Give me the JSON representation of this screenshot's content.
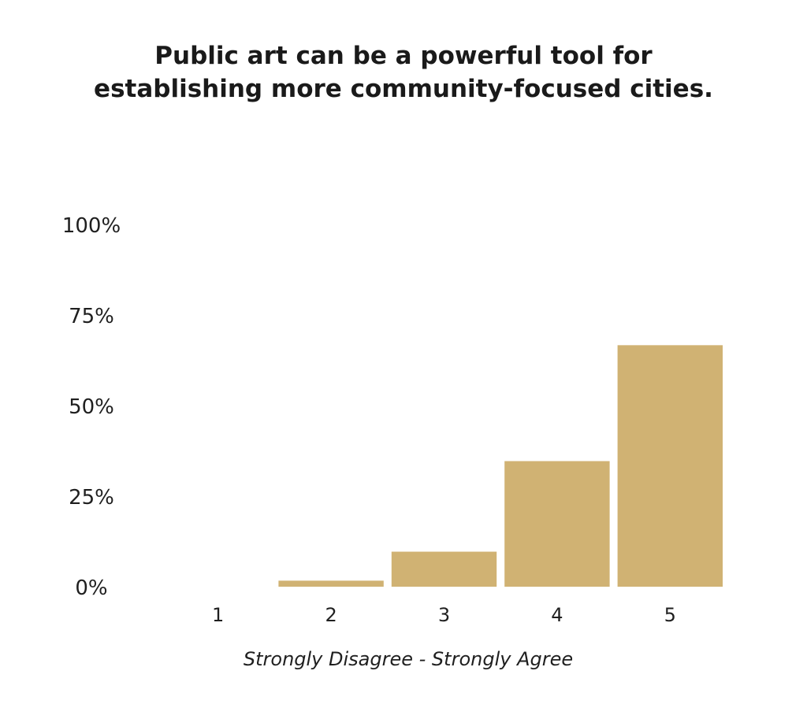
{
  "chart_data": {
    "type": "bar",
    "title_lines": [
      "Public art can be a powerful tool for",
      "establishing more community-focused cities."
    ],
    "categories": [
      "1",
      "2",
      "3",
      "4",
      "5"
    ],
    "values": [
      0,
      2.5,
      14.5,
      52,
      100
    ],
    "ylim": [
      0,
      150
    ],
    "y_ticks": [
      {
        "value": 0,
        "label": "0%"
      },
      {
        "value": 37.5,
        "label": "25%"
      },
      {
        "value": 75,
        "label": "50%"
      },
      {
        "value": 112.5,
        "label": "75%"
      },
      {
        "value": 150,
        "label": "100%"
      }
    ],
    "xlabel": "Strongly Disagree - Strongly Agree",
    "ylabel": "",
    "grid": false,
    "bar_color": "#d0b273"
  }
}
